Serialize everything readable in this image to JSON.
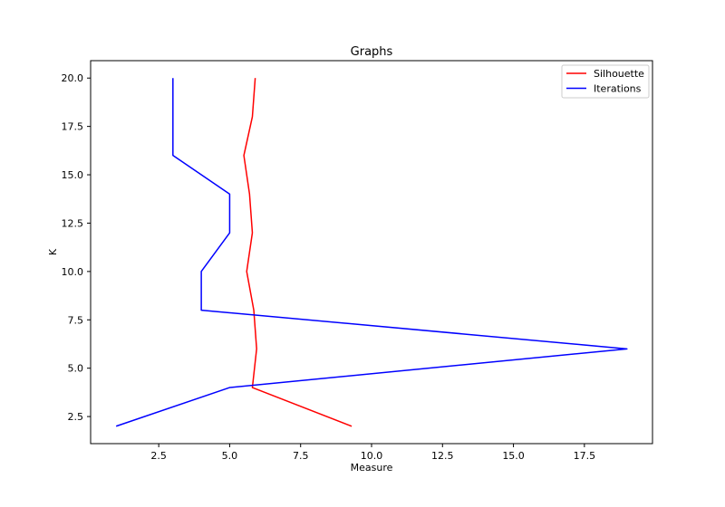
{
  "chart_data": {
    "type": "line",
    "title": "Graphs",
    "xlabel": "Measure",
    "ylabel": "K",
    "xlim": [
      0.1,
      19.9
    ],
    "ylim": [
      1.1,
      20.9
    ],
    "xticks": [
      2.5,
      5.0,
      7.5,
      10.0,
      12.5,
      15.0,
      17.5
    ],
    "xtick_labels": [
      "2.5",
      "5.0",
      "7.5",
      "10.0",
      "12.5",
      "15.0",
      "17.5"
    ],
    "yticks": [
      2.5,
      5.0,
      7.5,
      10.0,
      12.5,
      15.0,
      17.5,
      20.0
    ],
    "ytick_labels": [
      "2.5",
      "5.0",
      "7.5",
      "10.0",
      "12.5",
      "15.0",
      "17.5",
      "20.0"
    ],
    "grid": false,
    "legend_position": "top-right",
    "series": [
      {
        "name": "Silhouette",
        "color": "#ff0000",
        "x": [
          9.3,
          5.8,
          5.95,
          5.85,
          5.6,
          5.8,
          5.7,
          5.5,
          5.8,
          5.9
        ],
        "y": [
          2,
          4,
          6,
          8,
          10,
          12,
          14,
          16,
          18,
          20
        ]
      },
      {
        "name": "Iterations",
        "color": "#0000ff",
        "x": [
          1,
          5,
          19,
          4,
          4,
          5,
          5,
          3,
          3,
          3
        ],
        "y": [
          2,
          4,
          6,
          8,
          10,
          12,
          14,
          16,
          18,
          20
        ]
      }
    ]
  }
}
